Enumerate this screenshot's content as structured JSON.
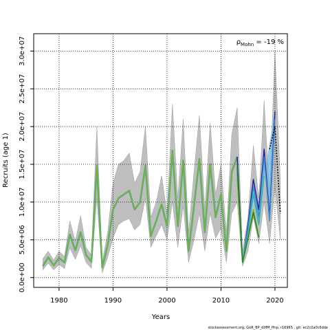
{
  "chart_data": {
    "type": "line",
    "xlabel": "Years",
    "ylabel": "Recruits (age 1)",
    "annotation": {
      "main": "ρ",
      "sub": "Mohn",
      "value": " = -19 %"
    },
    "footer": "stockassessment.org,  GoR_BP_diffM_ffnp,  r16965 ,  git:  ec2c2a0c6dde",
    "xlim": [
      1975.3,
      2022.3
    ],
    "ylim": [
      -1300000,
      32300000
    ],
    "x_ticks": [
      1980,
      1990,
      2000,
      2010,
      2020
    ],
    "x_tick_labels": [
      "1980",
      "1990",
      "2000",
      "2010",
      "2020"
    ],
    "y_ticks": [
      0,
      5000000,
      10000000,
      15000000,
      20000000,
      25000000,
      30000000
    ],
    "y_tick_labels": [
      "0.0e+00",
      "5.0e+06",
      "1.0e+07",
      "1.5e+07",
      "2.0e+07",
      "2.5e+07",
      "3.0e+07"
    ],
    "grid": true,
    "colors": {
      "band": "#bebebe",
      "band_edge": "#9e9e9e",
      "grid": "#000000",
      "main_line": "#000000",
      "retro_fill": "#6fb6e6",
      "retro": [
        "#1f1f9a",
        "#3a8fd0",
        "#29b5b5",
        "#8aaa2e",
        "#1a8a1a"
      ]
    },
    "confidence_band": {
      "years": [
        1977,
        1978,
        1979,
        1980,
        1981,
        1982,
        1983,
        1984,
        1985,
        1986,
        1987,
        1988,
        1989,
        1990,
        1991,
        1992,
        1993,
        1994,
        1995,
        1996,
        1997,
        1998,
        1999,
        2000,
        2001,
        2002,
        2003,
        2004,
        2005,
        2006,
        2007,
        2008,
        2009,
        2010,
        2011,
        2012,
        2013,
        2014,
        2015,
        2016,
        2017,
        2018,
        2019,
        2020,
        2021
      ],
      "lower": [
        1000000,
        1900000,
        1000000,
        1700000,
        1200000,
        3900000,
        2400000,
        4200000,
        2000000,
        1200000,
        10500000,
        600000,
        2700000,
        5200000,
        7000000,
        7500000,
        7800000,
        6300000,
        7000000,
        10500000,
        4000000,
        5500000,
        7000000,
        5000000,
        10000000,
        4000000,
        9500000,
        2000000,
        5000000,
        8500000,
        3500000,
        8500000,
        5200000,
        6500000,
        2000000,
        8500000,
        10000000,
        1500000,
        3500000,
        8000000,
        4500000,
        10000000,
        4500000,
        12000000,
        5000000
      ],
      "upper": [
        2500000,
        3500000,
        2300000,
        3500000,
        2800000,
        7500000,
        4800000,
        8200000,
        4000000,
        3000000,
        20000000,
        2000000,
        6000000,
        12500000,
        15000000,
        15500000,
        16500000,
        12500000,
        14000000,
        20000000,
        8000000,
        10000000,
        13500000,
        8500000,
        23000000,
        10500000,
        21000000,
        6000000,
        14000000,
        21500000,
        9000000,
        20500000,
        11000000,
        15000000,
        6000000,
        19000000,
        22500000,
        3500000,
        8000000,
        17500000,
        10500000,
        23500000,
        11000000,
        30000000,
        13000000
      ]
    },
    "series": [
      {
        "name": "",
        "years": [
          2013,
          2014,
          2015,
          2016,
          2017,
          2018,
          2019,
          2020
        ],
        "values": [
          16000000,
          2000000,
          7000000,
          13000000,
          9000000,
          17000000,
          8000000,
          22000000
        ]
      },
      {
        "name": "",
        "years": [
          2013,
          2014,
          2015,
          2016,
          2017,
          2018,
          2019,
          2020
        ],
        "values": [
          14500000,
          2100000,
          6500000,
          12000000,
          8000000,
          16000000,
          7500000,
          21000000
        ]
      },
      {
        "name": "",
        "years": [
          2013,
          2014,
          2015,
          2016,
          2017,
          2018
        ],
        "values": [
          13800000,
          2200000,
          5800000,
          11000000,
          7000000,
          13500000
        ]
      },
      {
        "name": "",
        "years": [
          2013,
          2014,
          2015,
          2016,
          2017
        ],
        "values": [
          13000000,
          2000000,
          5300000,
          9000000,
          5400000
        ]
      },
      {
        "name": "",
        "years": [
          2013,
          2014,
          2015,
          2016,
          2017
        ],
        "values": [
          14800000,
          2000000,
          5200000,
          8600000,
          5300000
        ]
      }
    ],
    "main": {
      "years": [
        1977,
        1978,
        1979,
        1980,
        1981,
        1982,
        1983,
        1984,
        1985,
        1986,
        1987,
        1988,
        1989,
        1990,
        1991,
        1992,
        1993,
        1994,
        1995,
        1996,
        1997,
        1998,
        1999,
        2000,
        2001,
        2002,
        2003,
        2004,
        2005,
        2006,
        2007,
        2008,
        2009,
        2010,
        2011,
        2012,
        2013
      ],
      "values": [
        1500000,
        2700000,
        1600000,
        2600000,
        2000000,
        5700000,
        3600000,
        6000000,
        3000000,
        2100000,
        14800000,
        1300000,
        4300000,
        9000000,
        10500000,
        11000000,
        11500000,
        9000000,
        10000000,
        14800000,
        5500000,
        7500000,
        9700000,
        6800000,
        16800000,
        6800000,
        15500000,
        3500000,
        9500000,
        15700000,
        6000000,
        15000000,
        8000000,
        11000000,
        3500000,
        14000000,
        16000000
      ]
    },
    "series_dotted": {
      "years": [
        2019,
        2020,
        2021
      ],
      "values": [
        17000000,
        20000000,
        8500000
      ]
    }
  }
}
